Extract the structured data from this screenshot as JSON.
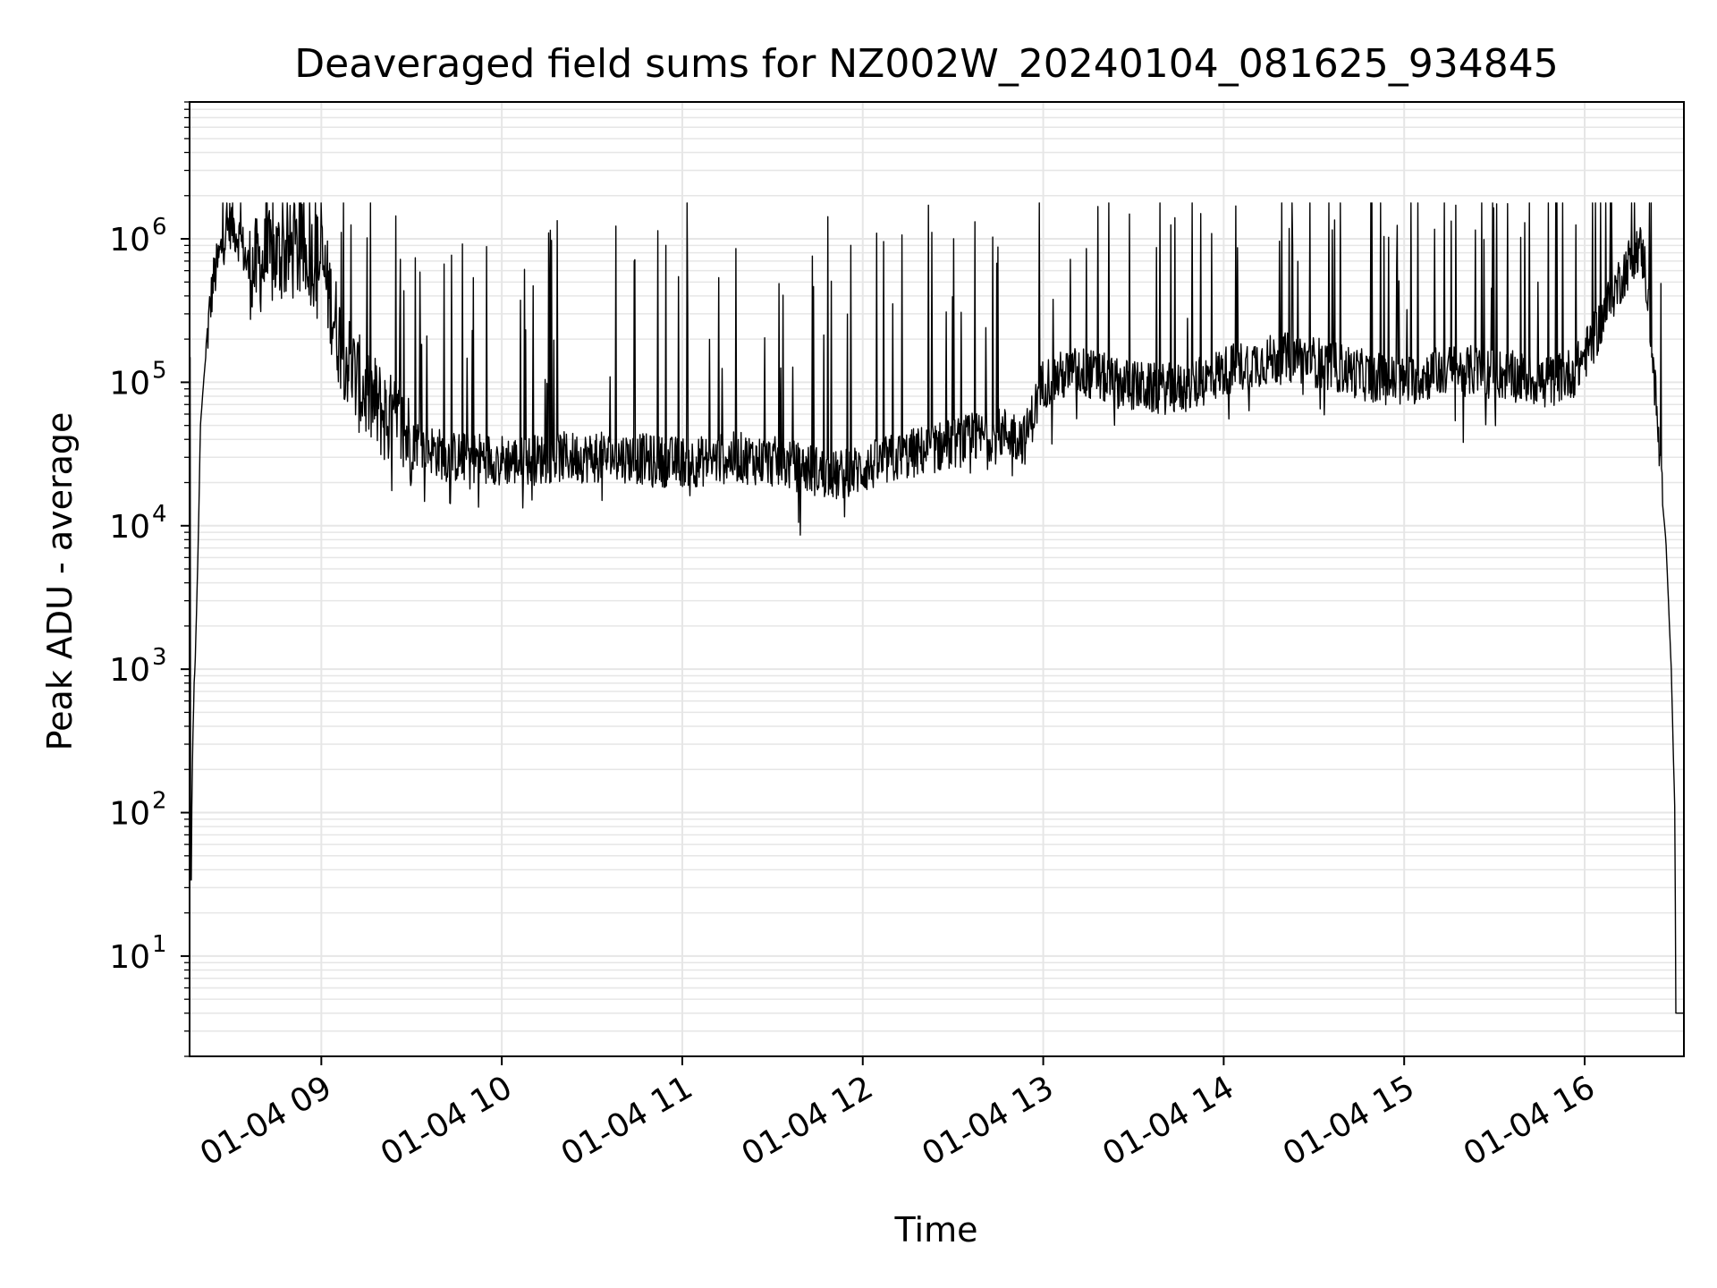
{
  "chart_data": {
    "type": "line",
    "title": "Deaveraged field sums for NZ002W_20240104_081625_934845",
    "xlabel": "Time",
    "ylabel": "Peak ADU - average",
    "yscale": "log",
    "ylim": [
      2,
      9000000
    ],
    "xlim_hours": [
      8.27,
      16.55
    ],
    "grid": true,
    "line_color": "#000000",
    "grid_color": "#e6e6e6",
    "x_ticks": [
      {
        "hour": 9,
        "label": "01-04 09"
      },
      {
        "hour": 10,
        "label": "01-04 10"
      },
      {
        "hour": 11,
        "label": "01-04 11"
      },
      {
        "hour": 12,
        "label": "01-04 12"
      },
      {
        "hour": 13,
        "label": "01-04 13"
      },
      {
        "hour": 14,
        "label": "01-04 14"
      },
      {
        "hour": 15,
        "label": "01-04 15"
      },
      {
        "hour": 16,
        "label": "01-04 16"
      }
    ],
    "y_ticks": [
      {
        "value": 10,
        "base": "10",
        "exp": "1"
      },
      {
        "value": 100,
        "base": "10",
        "exp": "2"
      },
      {
        "value": 1000,
        "base": "10",
        "exp": "3"
      },
      {
        "value": 10000,
        "base": "10",
        "exp": "4"
      },
      {
        "value": 100000,
        "base": "10",
        "exp": "5"
      },
      {
        "value": 1000000,
        "base": "10",
        "exp": "6"
      }
    ],
    "series": [
      {
        "x_hours": [
          8.273,
          8.277,
          8.28,
          8.287,
          8.29,
          8.295,
          8.3,
          8.31,
          8.32,
          8.33,
          8.35,
          8.38,
          8.4,
          8.43,
          8.45,
          8.48,
          8.5,
          8.55,
          8.6,
          8.7,
          8.8,
          8.9,
          9.0,
          9.1,
          9.2,
          9.3,
          9.4,
          9.5,
          9.7,
          9.9,
          10.1,
          10.3,
          10.5,
          10.7,
          10.9,
          11.1,
          11.3,
          11.5,
          11.7,
          11.85,
          12.0,
          12.2,
          12.4,
          12.6,
          12.8,
          12.9,
          13.0,
          13.2,
          13.4,
          13.6,
          13.8,
          14.0,
          14.2,
          14.4,
          14.6,
          14.8,
          15.0,
          15.2,
          15.4,
          15.6,
          15.8,
          15.95,
          16.05,
          16.15,
          16.25,
          16.3,
          16.33,
          16.35,
          16.37,
          16.4,
          16.43,
          16.45,
          16.47,
          16.48,
          16.49,
          16.5,
          16.505,
          16.55
        ],
        "y": [
          150000,
          4,
          60,
          300,
          400,
          800,
          1000,
          3000,
          10000,
          50000,
          110000,
          300000,
          500000,
          700000,
          900000,
          1200000,
          1300000,
          1000000,
          600000,
          700000,
          800000,
          800000,
          700000,
          200000,
          100000,
          70000,
          50000,
          40000,
          30000,
          30000,
          28000,
          30000,
          30000,
          30000,
          28000,
          28000,
          30000,
          28000,
          25000,
          22000,
          25000,
          30000,
          35000,
          40000,
          45000,
          40000,
          100000,
          120000,
          100000,
          90000,
          90000,
          120000,
          140000,
          150000,
          130000,
          110000,
          100000,
          120000,
          120000,
          110000,
          100000,
          120000,
          200000,
          400000,
          700000,
          900000,
          700000,
          400000,
          200000,
          60000,
          15000,
          8000,
          2000,
          1000,
          300,
          100,
          4,
          4
        ]
      }
    ]
  }
}
